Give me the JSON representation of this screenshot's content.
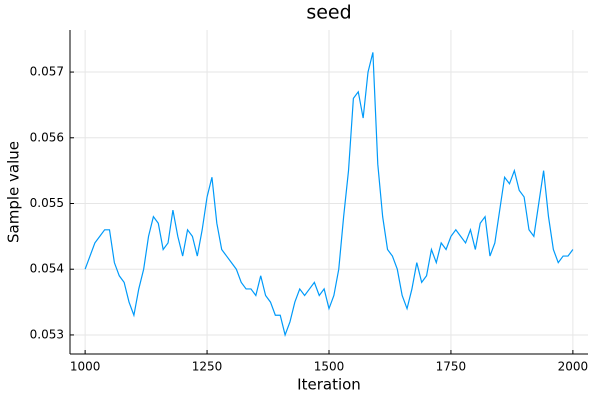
{
  "chart_data": {
    "type": "line",
    "title": "seed",
    "x_label": "Iteration",
    "y_label": "Sample value",
    "x": [
      1000,
      1010,
      1020,
      1030,
      1040,
      1050,
      1060,
      1070,
      1080,
      1090,
      1100,
      1110,
      1120,
      1130,
      1140,
      1150,
      1160,
      1170,
      1180,
      1190,
      1200,
      1210,
      1220,
      1230,
      1240,
      1250,
      1260,
      1270,
      1280,
      1290,
      1300,
      1310,
      1320,
      1330,
      1340,
      1350,
      1360,
      1370,
      1380,
      1390,
      1400,
      1410,
      1420,
      1430,
      1440,
      1450,
      1460,
      1470,
      1480,
      1490,
      1500,
      1510,
      1520,
      1530,
      1540,
      1550,
      1560,
      1570,
      1580,
      1590,
      1600,
      1610,
      1620,
      1630,
      1640,
      1650,
      1660,
      1670,
      1680,
      1690,
      1700,
      1710,
      1720,
      1730,
      1740,
      1750,
      1760,
      1770,
      1780,
      1790,
      1800,
      1810,
      1820,
      1830,
      1840,
      1850,
      1860,
      1870,
      1880,
      1890,
      1900,
      1910,
      1920,
      1930,
      1940,
      1950,
      1960,
      1970,
      1980,
      1990,
      2000
    ],
    "series": [
      {
        "name": "seed",
        "color": "#009af9",
        "values": [
          0.054,
          0.0542,
          0.0544,
          0.0545,
          0.0546,
          0.0546,
          0.0541,
          0.0539,
          0.0538,
          0.0535,
          0.0533,
          0.0537,
          0.054,
          0.0545,
          0.0548,
          0.0547,
          0.0543,
          0.0544,
          0.0549,
          0.0545,
          0.0542,
          0.0546,
          0.0545,
          0.0542,
          0.0546,
          0.0551,
          0.0554,
          0.0547,
          0.0543,
          0.0542,
          0.0541,
          0.054,
          0.0538,
          0.0537,
          0.0537,
          0.0536,
          0.0539,
          0.0536,
          0.0535,
          0.0533,
          0.0533,
          0.053,
          0.0532,
          0.0535,
          0.0537,
          0.0536,
          0.0537,
          0.0538,
          0.0536,
          0.0537,
          0.0534,
          0.0536,
          0.054,
          0.0548,
          0.0555,
          0.0566,
          0.0567,
          0.0563,
          0.057,
          0.0573,
          0.0556,
          0.0548,
          0.0543,
          0.0542,
          0.054,
          0.0536,
          0.0534,
          0.0537,
          0.0541,
          0.0538,
          0.0539,
          0.0543,
          0.0541,
          0.0544,
          0.0543,
          0.0545,
          0.0546,
          0.0545,
          0.0544,
          0.0546,
          0.0543,
          0.0547,
          0.0548,
          0.0542,
          0.0544,
          0.0549,
          0.0554,
          0.0553,
          0.0555,
          0.0552,
          0.0551,
          0.0546,
          0.0545,
          0.055,
          0.0555,
          0.0548,
          0.0543,
          0.0541,
          0.0542,
          0.0542,
          0.0543
        ]
      }
    ],
    "xlim": [
      969,
      2031
    ],
    "xticks": [
      1000,
      1250,
      1500,
      1750,
      2000
    ],
    "ylim": [
      0.05271,
      0.05764
    ],
    "yticks": [
      0.053,
      0.054,
      0.055,
      0.056,
      0.057
    ],
    "grid": true
  }
}
